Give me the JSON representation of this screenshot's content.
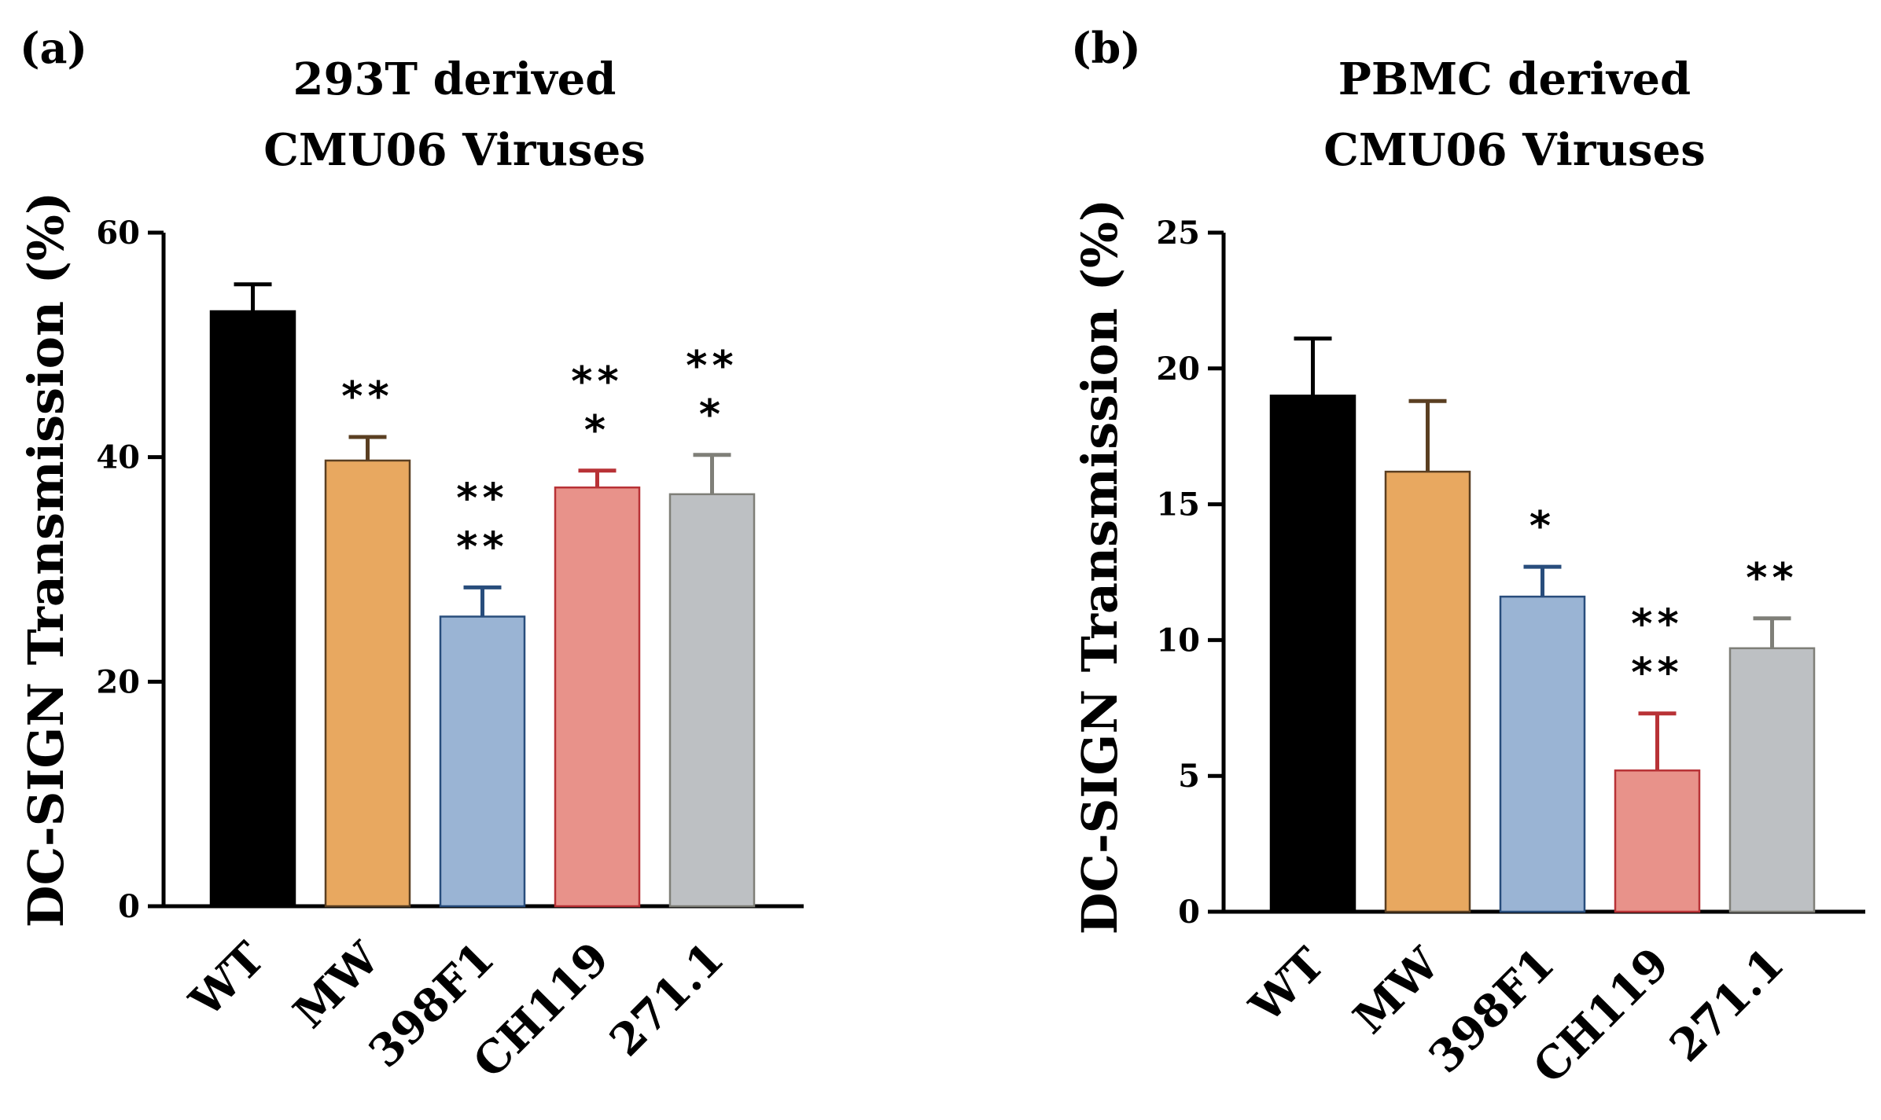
{
  "chart_data": [
    {
      "type": "bar",
      "panel_label": "(a)",
      "title": [
        "293T derived",
        "CMU06 Viruses"
      ],
      "ylabel": "DC-SIGN Transmission (%)",
      "xlabel": "",
      "ylim": [
        0,
        60
      ],
      "yticks": [
        "0",
        "20",
        "40",
        "60"
      ],
      "categories": [
        "WT",
        "MW",
        "398F1",
        "CH119",
        "271.1"
      ],
      "values": [
        53,
        39.7,
        25.8,
        37.3,
        36.7
      ],
      "errors": [
        2.4,
        2.1,
        2.6,
        1.5,
        3.5
      ],
      "significance": [
        [],
        [
          "**"
        ],
        [
          "**",
          "**"
        ],
        [
          "**",
          "*"
        ],
        [
          "**",
          "*"
        ]
      ],
      "colors": [
        "#000000",
        "#e8a860",
        "#9ab4d4",
        "#e8928a",
        "#bdc0c3"
      ],
      "edge_colors": [
        "#000000",
        "#5a3f22",
        "#284d7c",
        "#b83236",
        "#7f7f78"
      ]
    },
    {
      "type": "bar",
      "panel_label": "(b)",
      "title": [
        "PBMC derived",
        "CMU06 Viruses"
      ],
      "ylabel": "DC-SIGN Transmission (%)",
      "xlabel": "",
      "ylim": [
        0,
        25
      ],
      "yticks": [
        "0",
        "5",
        "10",
        "15",
        "20",
        "25"
      ],
      "categories": [
        "WT",
        "MW",
        "398F1",
        "CH119",
        "271.1"
      ],
      "values": [
        19,
        16.2,
        11.6,
        5.2,
        9.7
      ],
      "errors": [
        2.1,
        2.6,
        1.1,
        2.1,
        1.1
      ],
      "significance": [
        [],
        [],
        [
          "*"
        ],
        [
          "**",
          "**"
        ],
        [
          "**"
        ]
      ],
      "colors": [
        "#000000",
        "#e8a860",
        "#9ab4d4",
        "#e8928a",
        "#bdc0c3"
      ],
      "edge_colors": [
        "#000000",
        "#5a3f22",
        "#284d7c",
        "#b83236",
        "#7f7f78"
      ]
    }
  ]
}
